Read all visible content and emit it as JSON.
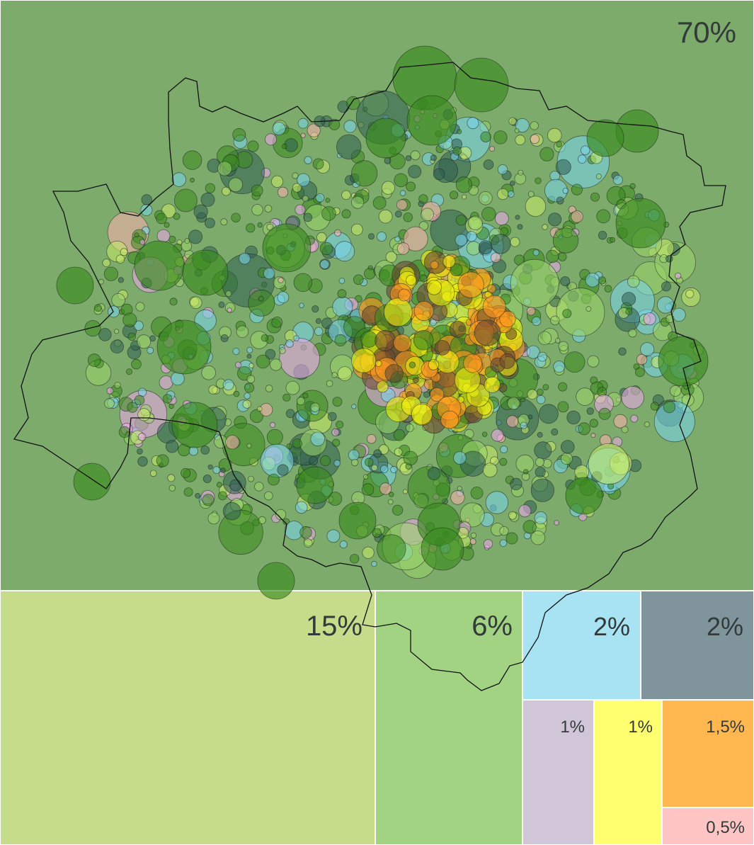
{
  "chart_data": {
    "type": "treemap",
    "title": "",
    "categories": [
      {
        "label": "70%",
        "value": 70,
        "color": "#7cab6c"
      },
      {
        "label": "15%",
        "value": 15,
        "color": "#c7dc8a"
      },
      {
        "label": "6%",
        "value": 6,
        "color": "#a2d382"
      },
      {
        "label": "2%",
        "value": 2,
        "color": "#a8e3f4"
      },
      {
        "label": "2%",
        "value": 2,
        "color": "#7f959b"
      },
      {
        "label": "1%",
        "value": 1,
        "color": "#d0c6d8"
      },
      {
        "label": "1%",
        "value": 1,
        "color": "#ffff70"
      },
      {
        "label": "1,5%",
        "value": 1.5,
        "color": "#ffb84f"
      },
      {
        "label": "0,5%",
        "value": 0.5,
        "color": "#ffc4c4"
      }
    ],
    "overlay": {
      "type": "bubble-map",
      "description_colors": [
        "#3a8a1e",
        "#9ad66a",
        "#c9ec6a",
        "#79d6ee",
        "#f0a8f0",
        "#ffb0b0",
        "#eeee10",
        "#ff9a20",
        "#2f5f52",
        "#6a4a30"
      ]
    }
  }
}
